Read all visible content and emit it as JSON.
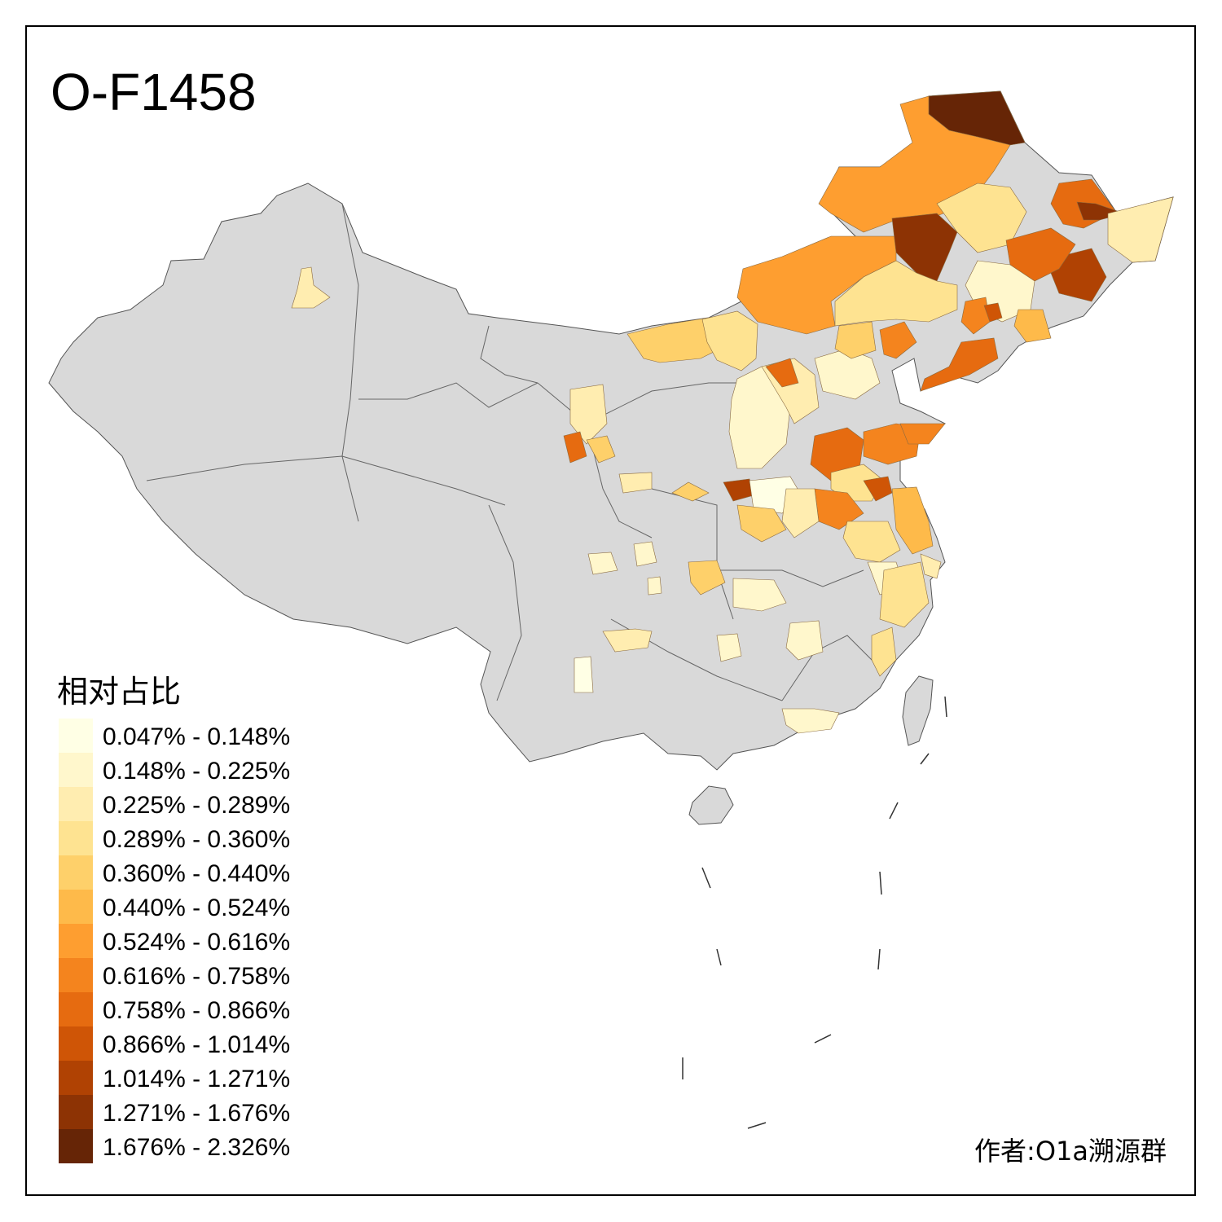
{
  "title": "O-F1458",
  "legend": {
    "title": "相对占比",
    "classes": [
      {
        "label": "0.047% - 0.148%",
        "color": "#FFFFE5"
      },
      {
        "label": "0.148% - 0.225%",
        "color": "#FFF7CC"
      },
      {
        "label": "0.225% - 0.289%",
        "color": "#FFEDB0"
      },
      {
        "label": "0.289% - 0.360%",
        "color": "#FEE391"
      },
      {
        "label": "0.360% - 0.440%",
        "color": "#FED06A"
      },
      {
        "label": "0.440% - 0.524%",
        "color": "#FEBA4A"
      },
      {
        "label": "0.524% - 0.616%",
        "color": "#FE9E30"
      },
      {
        "label": "0.616% - 0.758%",
        "color": "#F4841E"
      },
      {
        "label": "0.758% - 0.866%",
        "color": "#E66B10"
      },
      {
        "label": "0.866% - 1.014%",
        "color": "#CF5506"
      },
      {
        "label": "1.014% - 1.271%",
        "color": "#B04203"
      },
      {
        "label": "1.271% - 1.676%",
        "color": "#8D3304"
      },
      {
        "label": "1.676% - 2.326%",
        "color": "#662506"
      }
    ]
  },
  "author": "作者:O1a溯源群",
  "colors": {
    "no_data": "#D9D9D9",
    "border": "#555555",
    "frame": "#000000"
  }
}
